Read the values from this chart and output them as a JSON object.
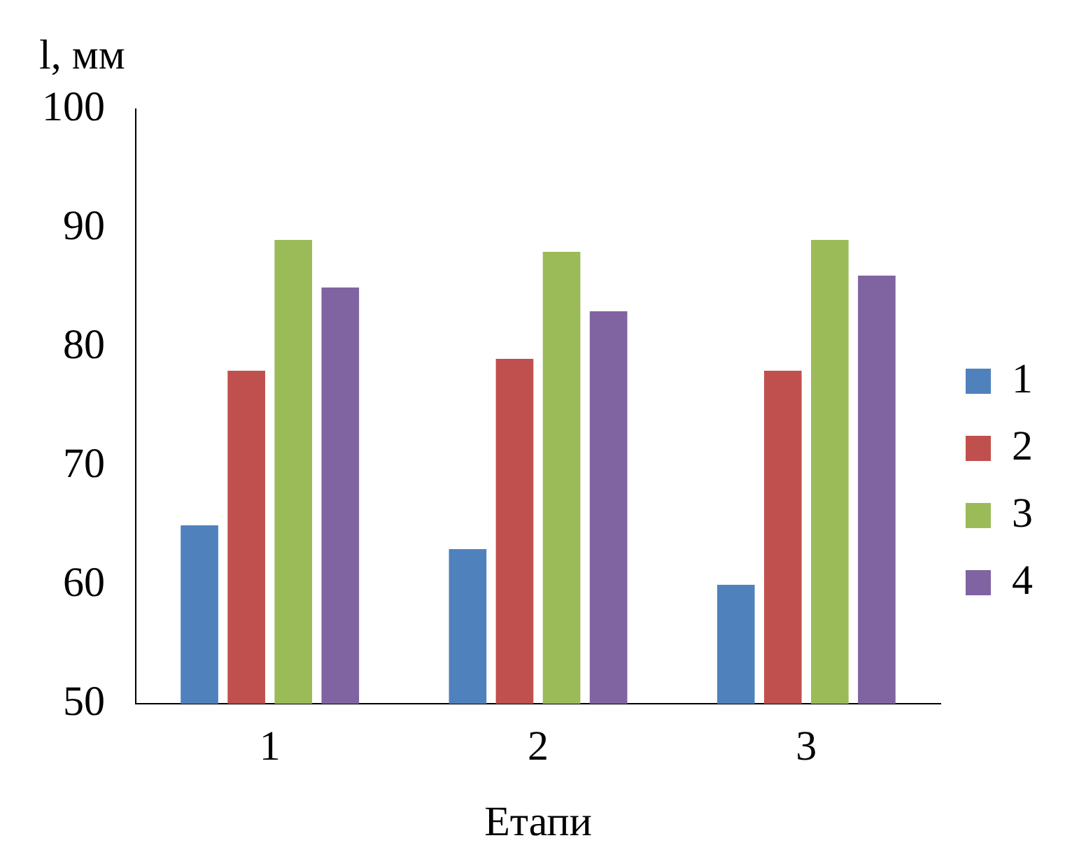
{
  "chart_data": {
    "type": "bar",
    "xlabel": "Етапи",
    "ylabel": "l, мм",
    "categories": [
      "1",
      "2",
      "3"
    ],
    "series": [
      {
        "name": "1",
        "color": "#4f81bd",
        "values": [
          65,
          63,
          60
        ]
      },
      {
        "name": "2",
        "color": "#c0504d",
        "values": [
          78,
          79,
          78
        ]
      },
      {
        "name": "3",
        "color": "#9bbb59",
        "values": [
          89,
          88,
          89
        ]
      },
      {
        "name": "4",
        "color": "#8064a2",
        "values": [
          85,
          83,
          86
        ]
      }
    ],
    "ylim": [
      50,
      100
    ],
    "yticks": [
      50,
      60,
      70,
      80,
      90,
      100
    ],
    "grid": false,
    "legend": "right"
  }
}
